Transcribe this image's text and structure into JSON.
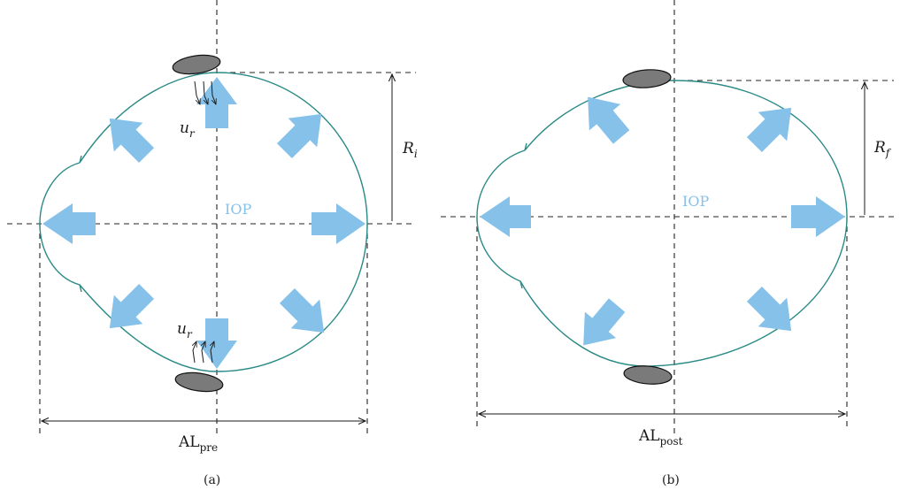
{
  "colors": {
    "eye_outline": "#2a8a86",
    "pressure_arrow": "#85c1e9",
    "band": "#7a7a7a",
    "guide_line": "#222222"
  },
  "icons": {
    "pressure_arrow": "block-arrow-icon",
    "scleral_band": "ellipse-band-icon",
    "displacement_arrow": "thin-arrow-icon"
  },
  "panels": {
    "a": {
      "caption": "(a)",
      "pressure_label": "IOP",
      "radius_label": {
        "main": "R",
        "sub": "i"
      },
      "displacement_top": {
        "main": "u",
        "sub": "r"
      },
      "displacement_bottom": {
        "main": "u",
        "sub": "r"
      },
      "length_label": {
        "main": "AL",
        "sub": "pre"
      }
    },
    "b": {
      "caption": "(b)",
      "pressure_label": "IOP",
      "radius_label": {
        "main": "R",
        "sub": "f"
      },
      "length_label": {
        "main": "AL",
        "sub": "post"
      }
    }
  }
}
